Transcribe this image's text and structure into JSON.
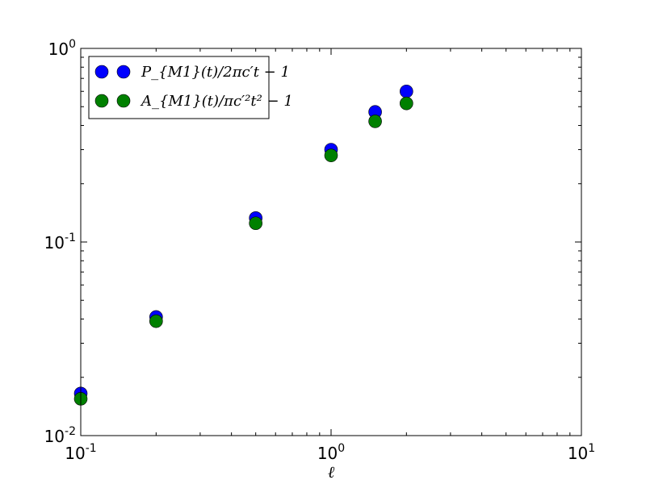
{
  "chart_data": {
    "type": "scatter",
    "title": "",
    "xlabel": "ℓ",
    "ylabel": "",
    "xscale": "log",
    "yscale": "log",
    "xlim": [
      0.1,
      10
    ],
    "ylim": [
      0.01,
      1
    ],
    "grid": false,
    "legend_position": "top-left",
    "x_tick_labels": [
      {
        "base": "10",
        "exp": "-1",
        "value": 0.1
      },
      {
        "base": "10",
        "exp": "0",
        "value": 1
      },
      {
        "base": "10",
        "exp": "1",
        "value": 10
      }
    ],
    "y_tick_labels": [
      {
        "base": "10",
        "exp": "-2",
        "value": 0.01
      },
      {
        "base": "10",
        "exp": "-1",
        "value": 0.1
      },
      {
        "base": "10",
        "exp": "0",
        "value": 1
      }
    ],
    "series": [
      {
        "name": "P_{M1}(t)/2πc′t − 1",
        "color": "#0000ff",
        "x": [
          0.1,
          0.2,
          0.5,
          1.0,
          1.5,
          2.0
        ],
        "y": [
          0.0165,
          0.041,
          0.133,
          0.3,
          0.47,
          0.6
        ]
      },
      {
        "name": "A_{M1}(t)/πc′²t² − 1",
        "color": "#008000",
        "x": [
          0.1,
          0.2,
          0.5,
          1.0,
          1.5,
          2.0
        ],
        "y": [
          0.0155,
          0.039,
          0.125,
          0.28,
          0.42,
          0.52
        ]
      }
    ]
  }
}
